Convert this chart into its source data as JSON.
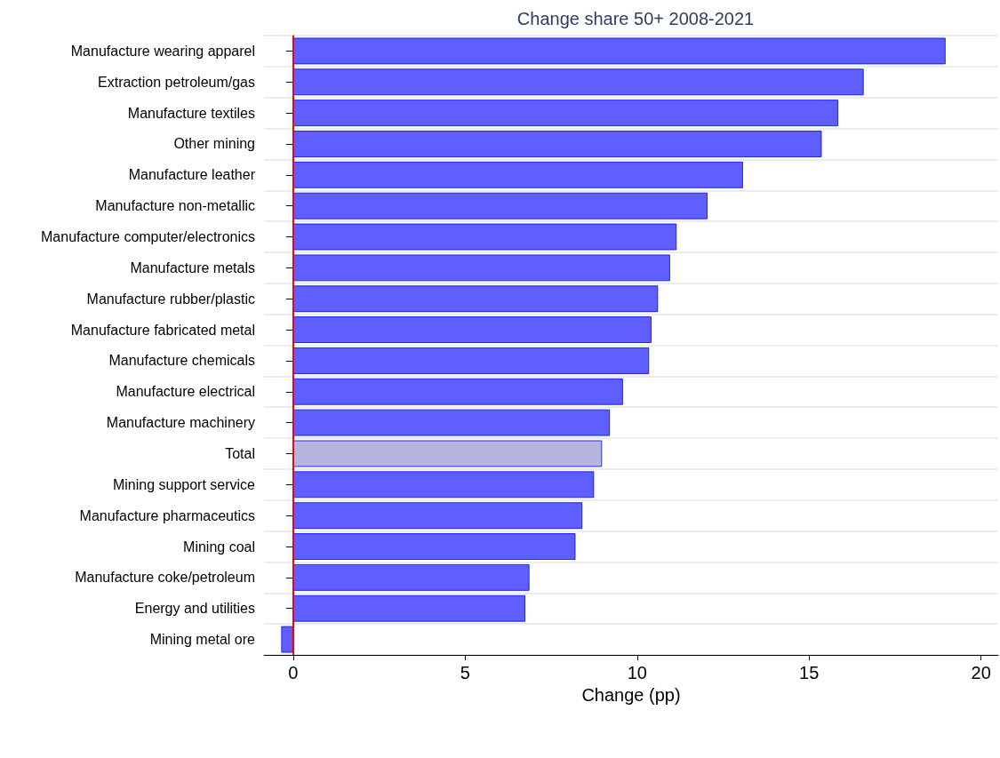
{
  "chart_data": {
    "type": "bar",
    "orientation": "horizontal",
    "title": "Change share 50+ 2008-2021",
    "xlabel": "Change (pp)",
    "categories": [
      "Manufacture wearing apparel",
      "Extraction petroleum/gas",
      "Manufacture textiles",
      "Other mining",
      "Manufacture leather",
      "Manufacture non-metallic",
      "Manufacture computer/electronics",
      "Manufacture metals",
      "Manufacture rubber/plastic",
      "Manufacture fabricated metal",
      "Manufacture chemicals",
      "Manufacture electrical",
      "Manufacture machinery",
      "Total",
      "Mining support service",
      "Manufacture pharmaceutics",
      "Mining coal",
      "Manufacture coke/petroleum",
      "Energy and utilities",
      "Mining metal ore"
    ],
    "values": [
      18.97,
      16.59,
      15.85,
      15.37,
      13.08,
      12.05,
      11.15,
      10.96,
      10.61,
      10.42,
      10.35,
      9.59,
      9.21,
      8.98,
      8.75,
      8.41,
      8.21,
      6.87,
      6.75,
      -0.35
    ],
    "colors": [
      "#5f5fff",
      "#5f5fff",
      "#5f5fff",
      "#5f5fff",
      "#5f5fff",
      "#5f5fff",
      "#5f5fff",
      "#5f5fff",
      "#5f5fff",
      "#5f5fff",
      "#5f5fff",
      "#5f5fff",
      "#5f5fff",
      "#b8b4e0",
      "#5f5fff",
      "#5f5fff",
      "#5f5fff",
      "#5f5fff",
      "#5f5fff",
      "#5f5fff"
    ],
    "xlim": [
      -0.85,
      20.5
    ],
    "xticks": [
      0,
      5,
      10,
      15,
      20
    ],
    "ref_lines": [
      {
        "axis": "x",
        "value": 0,
        "color": "#ff0000"
      }
    ],
    "grid": "y"
  }
}
